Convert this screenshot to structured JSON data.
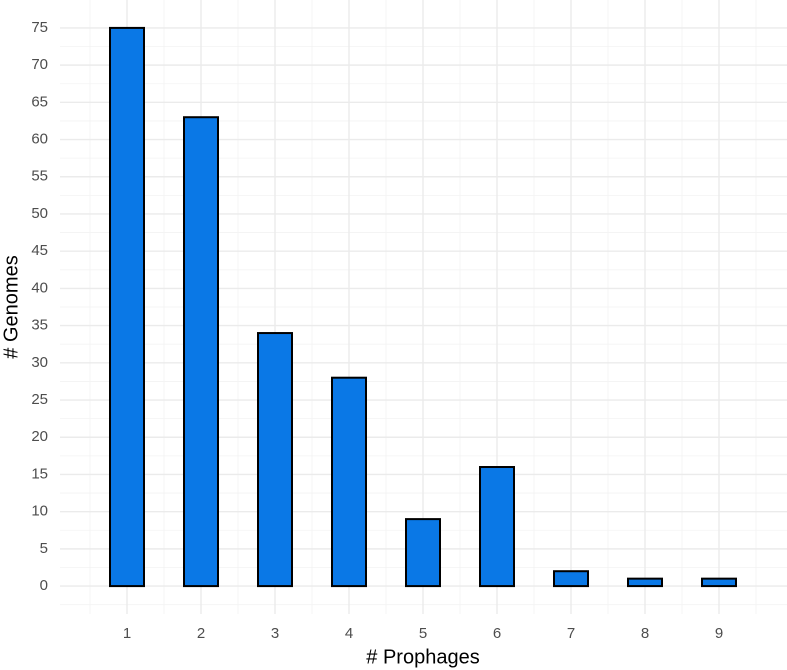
{
  "chart_data": {
    "type": "bar",
    "x_label": "# Prophages",
    "y_label": "# Genomes",
    "categories": [
      "1",
      "2",
      "3",
      "4",
      "5",
      "6",
      "7",
      "8",
      "9"
    ],
    "values": [
      75,
      63,
      34,
      28,
      9,
      16,
      2,
      1,
      1
    ],
    "color": "#0a78e6",
    "edge_color": "#000000",
    "ylim": [
      -3.75,
      78.75
    ],
    "yticks": [
      0,
      5,
      10,
      15,
      20,
      25,
      30,
      35,
      40,
      45,
      50,
      55,
      60,
      65,
      70,
      75
    ],
    "grid": true
  }
}
